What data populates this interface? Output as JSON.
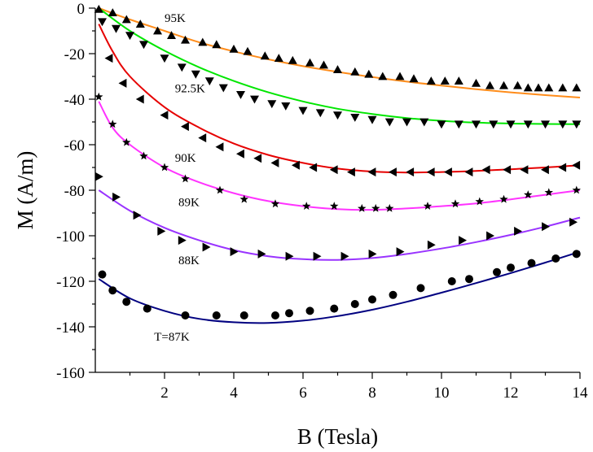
{
  "chart_data": {
    "type": "scatter",
    "xlabel": "B (Tesla)",
    "ylabel": "M (A/m)",
    "xlim": [
      0,
      14
    ],
    "ylim": [
      -160,
      0
    ],
    "xticks": [
      2,
      4,
      6,
      8,
      10,
      12,
      14
    ],
    "yticks": [
      0,
      -20,
      -40,
      -60,
      -80,
      -100,
      -120,
      -140,
      -160
    ],
    "grid": false,
    "legend": "none",
    "series": [
      {
        "name": "95K",
        "color": "#ff8c1a",
        "marker": "triangle-up",
        "points": [
          [
            0.1,
            -0.5
          ],
          [
            0.5,
            -2
          ],
          [
            0.9,
            -5
          ],
          [
            1.3,
            -7
          ],
          [
            1.8,
            -10
          ],
          [
            2.2,
            -12
          ],
          [
            2.6,
            -14
          ],
          [
            3.1,
            -15
          ],
          [
            3.5,
            -16
          ],
          [
            4.0,
            -18
          ],
          [
            4.4,
            -19
          ],
          [
            4.9,
            -21
          ],
          [
            5.3,
            -22
          ],
          [
            5.7,
            -23
          ],
          [
            6.2,
            -24
          ],
          [
            6.6,
            -25
          ],
          [
            7.0,
            -27
          ],
          [
            7.5,
            -28
          ],
          [
            7.9,
            -29
          ],
          [
            8.3,
            -30
          ],
          [
            8.8,
            -30
          ],
          [
            9.2,
            -31
          ],
          [
            9.7,
            -32
          ],
          [
            10.1,
            -32
          ],
          [
            10.5,
            -32
          ],
          [
            11.0,
            -33
          ],
          [
            11.4,
            -34
          ],
          [
            11.8,
            -34
          ],
          [
            12.2,
            -34
          ],
          [
            12.5,
            -35
          ],
          [
            12.8,
            -35
          ],
          [
            13.1,
            -35
          ],
          [
            13.5,
            -35
          ],
          [
            13.9,
            -35
          ]
        ],
        "fit": [
          [
            0.1,
            0
          ],
          [
            1,
            -5
          ],
          [
            2,
            -10
          ],
          [
            3,
            -15
          ],
          [
            4,
            -19
          ],
          [
            5,
            -22.5
          ],
          [
            6,
            -25.5
          ],
          [
            7,
            -28
          ],
          [
            8,
            -30.3
          ],
          [
            9,
            -32.3
          ],
          [
            10,
            -34
          ],
          [
            11,
            -35.6
          ],
          [
            12,
            -37
          ],
          [
            13,
            -38.2
          ],
          [
            14,
            -39.3
          ]
        ],
        "label": "95K"
      },
      {
        "name": "92.5K",
        "color": "#00e600",
        "marker": "triangle-down",
        "points": [
          [
            0.2,
            -6
          ],
          [
            0.6,
            -9
          ],
          [
            1.0,
            -12
          ],
          [
            1.4,
            -16
          ],
          [
            2.0,
            -22
          ],
          [
            2.5,
            -26
          ],
          [
            2.9,
            -29
          ],
          [
            3.3,
            -32
          ],
          [
            3.7,
            -35
          ],
          [
            4.2,
            -38
          ],
          [
            4.6,
            -40
          ],
          [
            5.1,
            -42
          ],
          [
            5.5,
            -43
          ],
          [
            6.0,
            -45
          ],
          [
            6.5,
            -46
          ],
          [
            7.0,
            -47
          ],
          [
            7.5,
            -48
          ],
          [
            8.0,
            -49
          ],
          [
            8.5,
            -50
          ],
          [
            9.0,
            -50
          ],
          [
            9.5,
            -50
          ],
          [
            10.0,
            -51
          ],
          [
            10.5,
            -51
          ],
          [
            11.0,
            -51
          ],
          [
            11.5,
            -51
          ],
          [
            12.0,
            -51
          ],
          [
            12.5,
            -51
          ],
          [
            13.0,
            -51
          ],
          [
            13.5,
            -51
          ],
          [
            13.9,
            -51
          ]
        ],
        "fit": [
          [
            0.1,
            0
          ],
          [
            1,
            -10
          ],
          [
            2,
            -18.7
          ],
          [
            3,
            -26
          ],
          [
            4,
            -32
          ],
          [
            5,
            -37
          ],
          [
            6,
            -41
          ],
          [
            7,
            -44.2
          ],
          [
            8,
            -46.5
          ],
          [
            9,
            -48.3
          ],
          [
            10,
            -49.5
          ],
          [
            11,
            -50.3
          ],
          [
            12,
            -50.7
          ],
          [
            13,
            -50.9
          ],
          [
            14,
            -51
          ]
        ],
        "label": "92.5K"
      },
      {
        "name": "90K",
        "color": "#e60000",
        "marker": "triangle-left",
        "points": [
          [
            0.4,
            -22
          ],
          [
            0.8,
            -33
          ],
          [
            1.3,
            -40
          ],
          [
            2.0,
            -47
          ],
          [
            2.6,
            -52
          ],
          [
            3.1,
            -57
          ],
          [
            3.6,
            -61
          ],
          [
            4.2,
            -64
          ],
          [
            4.7,
            -66
          ],
          [
            5.2,
            -68
          ],
          [
            5.8,
            -69
          ],
          [
            6.3,
            -70
          ],
          [
            6.9,
            -71
          ],
          [
            7.4,
            -72
          ],
          [
            8.0,
            -72
          ],
          [
            8.6,
            -72
          ],
          [
            9.1,
            -72
          ],
          [
            9.7,
            -72
          ],
          [
            10.2,
            -72
          ],
          [
            10.8,
            -72
          ],
          [
            11.3,
            -71
          ],
          [
            11.9,
            -71
          ],
          [
            12.4,
            -71
          ],
          [
            13.0,
            -71
          ],
          [
            13.5,
            -70
          ],
          [
            13.9,
            -69
          ]
        ],
        "fit": [
          [
            0.1,
            -7
          ],
          [
            0.5,
            -19
          ],
          [
            1,
            -30
          ],
          [
            2,
            -43.5
          ],
          [
            3,
            -52.5
          ],
          [
            4,
            -59.5
          ],
          [
            5,
            -64.5
          ],
          [
            6,
            -68
          ],
          [
            7,
            -70.5
          ],
          [
            8,
            -71.8
          ],
          [
            9,
            -72.2
          ],
          [
            10,
            -72
          ],
          [
            11,
            -71.5
          ],
          [
            12,
            -70.8
          ],
          [
            13,
            -70
          ],
          [
            14,
            -69
          ]
        ],
        "label": "90K"
      },
      {
        "name": "89K",
        "color": "#ff33ff",
        "marker": "star",
        "points": [
          [
            0.1,
            -39
          ],
          [
            0.5,
            -51
          ],
          [
            0.9,
            -59
          ],
          [
            1.4,
            -65
          ],
          [
            2.0,
            -70
          ],
          [
            2.6,
            -75
          ],
          [
            3.6,
            -80
          ],
          [
            4.3,
            -84
          ],
          [
            5.2,
            -86
          ],
          [
            6.1,
            -87
          ],
          [
            6.9,
            -87
          ],
          [
            7.7,
            -88
          ],
          [
            8.1,
            -88
          ],
          [
            8.5,
            -88
          ],
          [
            9.6,
            -87
          ],
          [
            10.4,
            -86
          ],
          [
            11.1,
            -85
          ],
          [
            11.8,
            -84
          ],
          [
            12.5,
            -82
          ],
          [
            13.1,
            -81
          ],
          [
            13.9,
            -80
          ]
        ],
        "fit": [
          [
            0.1,
            -41
          ],
          [
            0.5,
            -52.5
          ],
          [
            1,
            -60
          ],
          [
            2,
            -70
          ],
          [
            3,
            -76.5
          ],
          [
            4,
            -81.3
          ],
          [
            5,
            -84.8
          ],
          [
            6,
            -87
          ],
          [
            7,
            -88.3
          ],
          [
            8,
            -88.6
          ],
          [
            9,
            -88
          ],
          [
            10,
            -87
          ],
          [
            11,
            -85.8
          ],
          [
            12,
            -84
          ],
          [
            13,
            -82
          ],
          [
            14,
            -80
          ]
        ],
        "label": "89K"
      },
      {
        "name": "88K",
        "color": "#9933ff",
        "marker": "triangle-right",
        "points": [
          [
            0.1,
            -74
          ],
          [
            0.6,
            -83
          ],
          [
            1.2,
            -91
          ],
          [
            1.9,
            -98
          ],
          [
            2.5,
            -102
          ],
          [
            3.2,
            -105
          ],
          [
            4.0,
            -107
          ],
          [
            4.8,
            -108
          ],
          [
            5.6,
            -109
          ],
          [
            6.4,
            -109
          ],
          [
            7.2,
            -109
          ],
          [
            8.0,
            -108
          ],
          [
            8.8,
            -107
          ],
          [
            9.7,
            -104
          ],
          [
            10.6,
            -102
          ],
          [
            11.4,
            -100
          ],
          [
            12.2,
            -98
          ],
          [
            13.0,
            -96
          ],
          [
            13.8,
            -94
          ]
        ],
        "fit": [
          [
            0.1,
            -80
          ],
          [
            1,
            -89
          ],
          [
            2,
            -96.5
          ],
          [
            3,
            -102
          ],
          [
            4,
            -106.3
          ],
          [
            5,
            -109
          ],
          [
            6,
            -110.3
          ],
          [
            7,
            -110.6
          ],
          [
            8,
            -109.8
          ],
          [
            9,
            -108
          ],
          [
            10,
            -105.6
          ],
          [
            11,
            -102.8
          ],
          [
            12,
            -99.6
          ],
          [
            13,
            -96
          ],
          [
            14,
            -92
          ]
        ],
        "label": "88K"
      },
      {
        "name": "T=87K",
        "color": "#000080",
        "marker": "circle",
        "points": [
          [
            0.2,
            -117
          ],
          [
            0.5,
            -124
          ],
          [
            0.9,
            -129
          ],
          [
            1.5,
            -132
          ],
          [
            2.6,
            -135
          ],
          [
            3.5,
            -135
          ],
          [
            4.3,
            -135
          ],
          [
            5.2,
            -135
          ],
          [
            5.6,
            -134
          ],
          [
            6.2,
            -133
          ],
          [
            6.9,
            -132
          ],
          [
            7.5,
            -130
          ],
          [
            8.0,
            -128
          ],
          [
            8.6,
            -126
          ],
          [
            9.4,
            -123
          ],
          [
            10.3,
            -120
          ],
          [
            10.8,
            -119
          ],
          [
            11.6,
            -116
          ],
          [
            12.0,
            -114
          ],
          [
            12.6,
            -112
          ],
          [
            13.3,
            -110
          ],
          [
            13.9,
            -108
          ]
        ],
        "fit": [
          [
            0.1,
            -119
          ],
          [
            1,
            -127.5
          ],
          [
            2,
            -133
          ],
          [
            3,
            -136.5
          ],
          [
            4,
            -138
          ],
          [
            5,
            -138.3
          ],
          [
            6,
            -137.3
          ],
          [
            7,
            -135.3
          ],
          [
            8,
            -132.5
          ],
          [
            9,
            -129
          ],
          [
            10,
            -125
          ],
          [
            11,
            -120.8
          ],
          [
            12,
            -116.4
          ],
          [
            13,
            -111.8
          ],
          [
            14,
            -107
          ]
        ],
        "label": "T=87K"
      }
    ]
  }
}
